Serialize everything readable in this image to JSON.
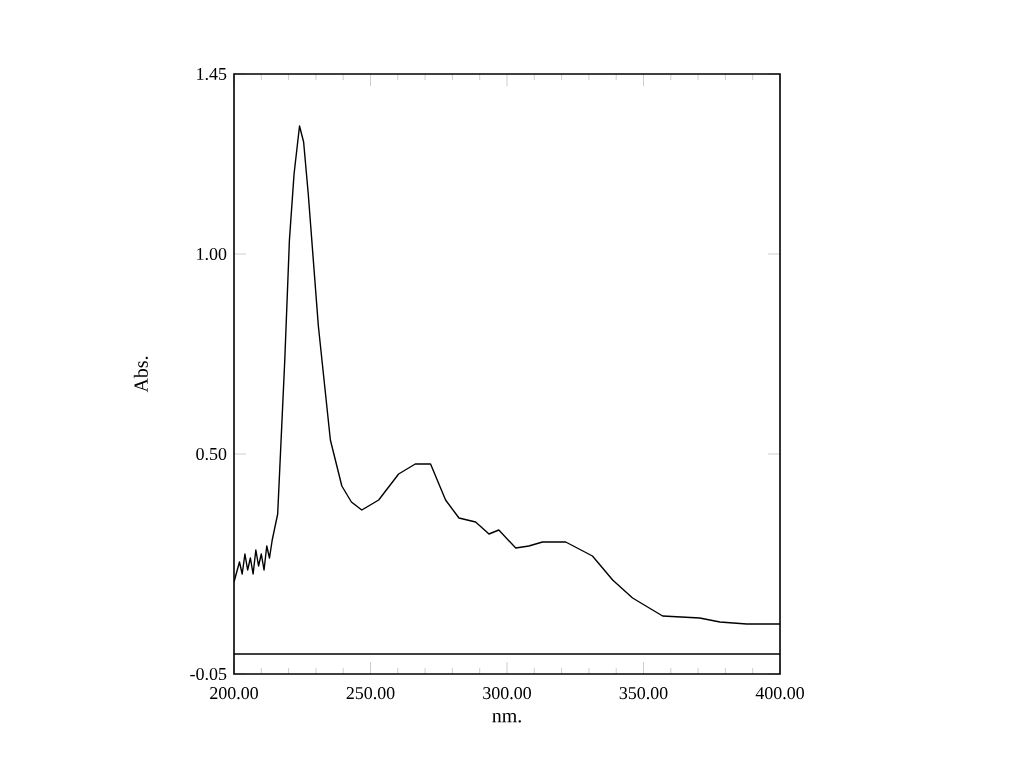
{
  "chart_data": {
    "type": "line",
    "xlabel": "nm.",
    "ylabel": "Abs.",
    "xlim": [
      200,
      400
    ],
    "ylim": [
      -0.05,
      1.45
    ],
    "xticks": [
      {
        "value": 200,
        "label": "200.00"
      },
      {
        "value": 250,
        "label": "250.00"
      },
      {
        "value": 300,
        "label": "300.00"
      },
      {
        "value": 350,
        "label": "350.00"
      },
      {
        "value": 400,
        "label": "400.00"
      }
    ],
    "yticks": [
      {
        "value": -0.05,
        "label": "-0.05"
      },
      {
        "value": 0.5,
        "label": "0.50"
      },
      {
        "value": 1.0,
        "label": "1.00"
      },
      {
        "value": 1.45,
        "label": "1.45"
      }
    ],
    "grid": false,
    "marker": "none",
    "line_style": "solid",
    "series": [
      {
        "color": "#000000",
        "x": [
          200,
          202,
          203,
          204,
          205,
          206,
          207,
          208,
          209,
          210,
          211,
          212,
          213,
          214,
          216,
          218.6,
          220.3,
          222,
          224,
          225.5,
          227.2,
          230.9,
          235.3,
          239.5,
          243,
          246.8,
          253,
          260.3,
          266.4,
          272,
          277.5,
          282.4,
          288.5,
          293.4,
          297,
          303.2,
          308,
          313,
          321.5,
          331.3,
          338.7,
          346,
          357,
          370.6,
          378,
          387.8,
          400
        ],
        "values": [
          0.18,
          0.23,
          0.2,
          0.25,
          0.21,
          0.24,
          0.2,
          0.26,
          0.22,
          0.25,
          0.21,
          0.27,
          0.24,
          0.285,
          0.35,
          0.735,
          1.035,
          1.2,
          1.32,
          1.28,
          1.15,
          0.82,
          0.535,
          0.42,
          0.38,
          0.36,
          0.385,
          0.45,
          0.475,
          0.475,
          0.385,
          0.34,
          0.33,
          0.3,
          0.31,
          0.265,
          0.27,
          0.28,
          0.28,
          0.245,
          0.185,
          0.14,
          0.095,
          0.09,
          0.08,
          0.075,
          0.075
        ]
      },
      {
        "color": "#000000",
        "x": [
          200,
          400
        ],
        "values": [
          0,
          0
        ]
      }
    ]
  }
}
